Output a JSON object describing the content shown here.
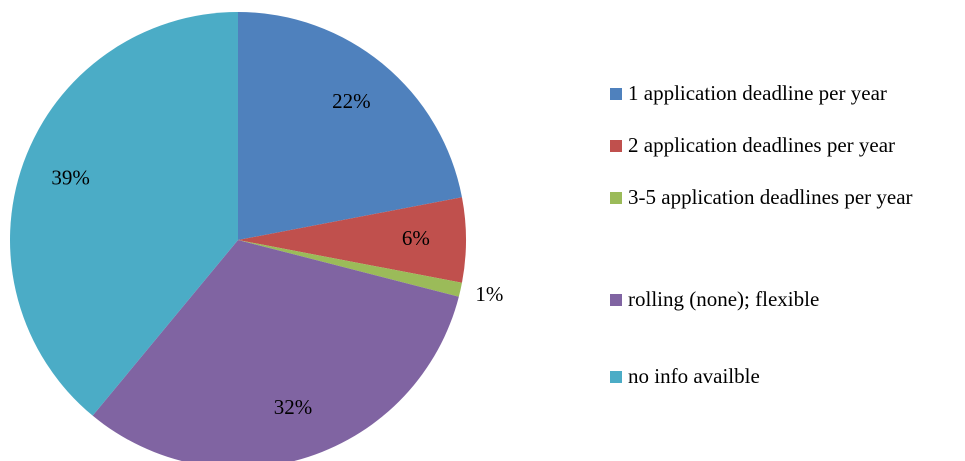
{
  "chart_data": {
    "type": "pie",
    "categories": [
      "1 application deadline per year",
      "2 application deadlines per year",
      "3-5 application deadlines per year",
      "rolling (none); flexible",
      "no info availble"
    ],
    "values": [
      22,
      6,
      1,
      32,
      39
    ],
    "value_labels": [
      "22%",
      "6%",
      "1%",
      "32%",
      "39%"
    ],
    "colors": [
      "#4f81bd",
      "#c0504d",
      "#9bbb59",
      "#8064a2",
      "#4bacc6"
    ],
    "legend": "right"
  }
}
